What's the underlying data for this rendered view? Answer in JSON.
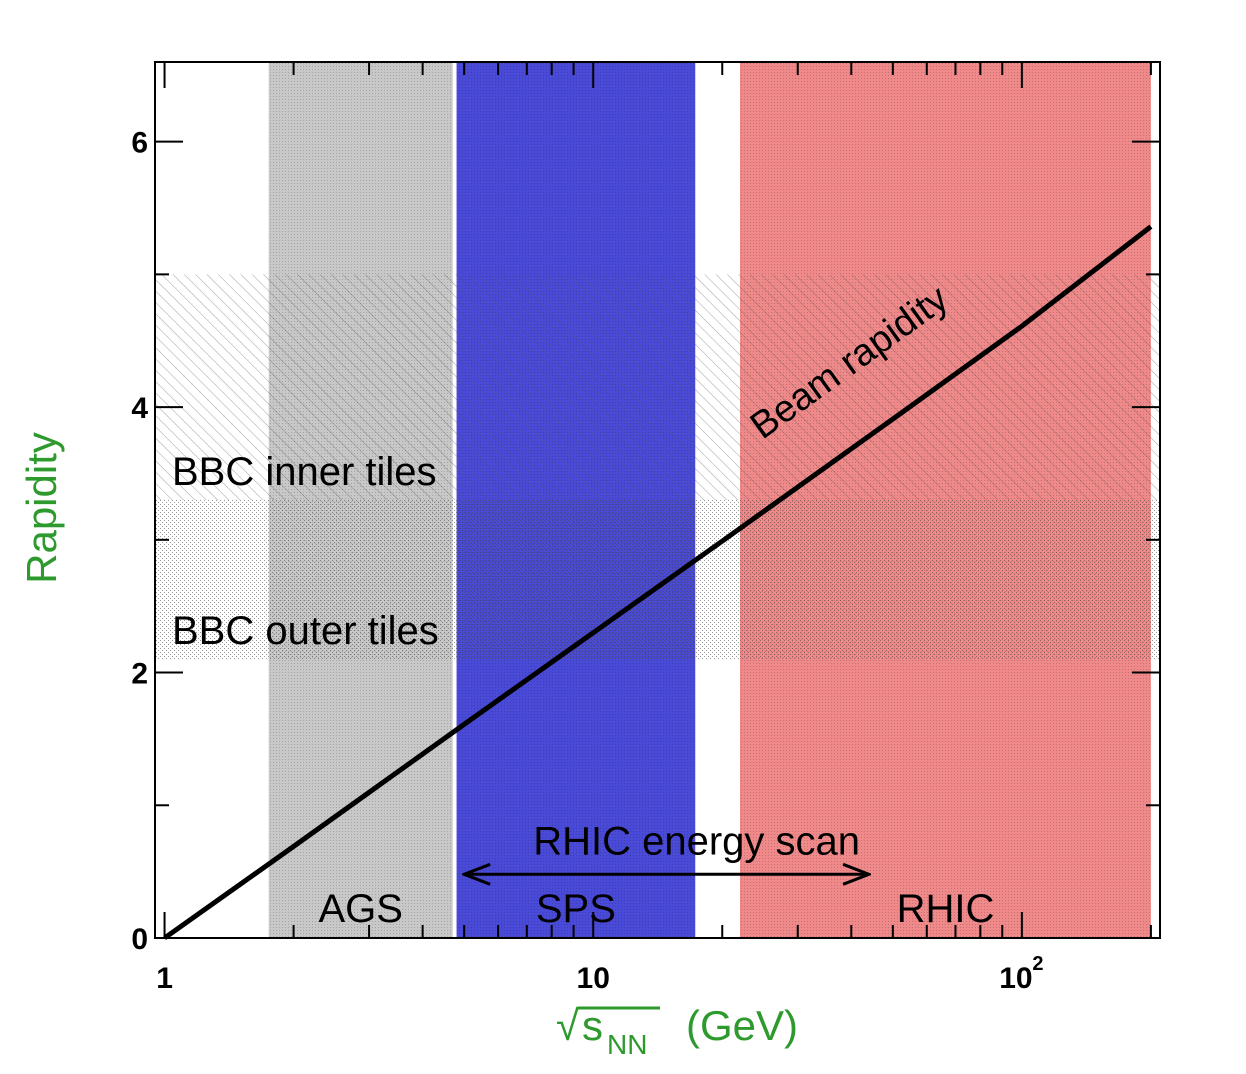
{
  "chart_data": {
    "type": "line",
    "xscale": "log",
    "xlim": [
      0.95,
      210
    ],
    "ylim": [
      0,
      6.6
    ],
    "xlabel": {
      "radical": "√",
      "main": "s",
      "sub": "NN",
      "units": "(GeV)"
    },
    "ylabel": "Rapidity",
    "x_ticks": [
      {
        "value": 1,
        "label": "1"
      },
      {
        "value": 10,
        "label": "10"
      },
      {
        "value": 100,
        "label_base": "10",
        "label_exp": "2"
      }
    ],
    "y_ticks": [
      {
        "value": 0,
        "label": "0"
      },
      {
        "value": 2,
        "label": "2"
      },
      {
        "value": 4,
        "label": "4"
      },
      {
        "value": 6,
        "label": "6"
      }
    ],
    "energy_regions": [
      {
        "label": "AGS",
        "x_min": 1.75,
        "x_max": 4.7,
        "color": "#c8c8c8"
      },
      {
        "label": "SPS",
        "x_min": 4.8,
        "x_max": 17.3,
        "color": "#4a4ad8"
      },
      {
        "label": "RHIC",
        "x_min": 22,
        "x_max": 200,
        "color": "#f08a8a"
      }
    ],
    "detector_bands": [
      {
        "label": "BBC inner tiles",
        "y_min": 3.3,
        "y_max": 5.0
      },
      {
        "label": "BBC outer tiles",
        "y_min": 2.1,
        "y_max": 3.3
      }
    ],
    "series": [
      {
        "name": "Beam rapidity",
        "x": [
          1.0,
          2.0,
          5.0,
          10.0,
          20.0,
          50.0,
          100.0,
          200.0
        ],
        "y": [
          0.0,
          0.69,
          1.61,
          2.3,
          2.99,
          3.91,
          4.61,
          5.36
        ]
      }
    ],
    "arrow": {
      "label": "RHIC energy scan",
      "x_from": 5.0,
      "x_to": 44.0,
      "y": 0.48
    }
  }
}
